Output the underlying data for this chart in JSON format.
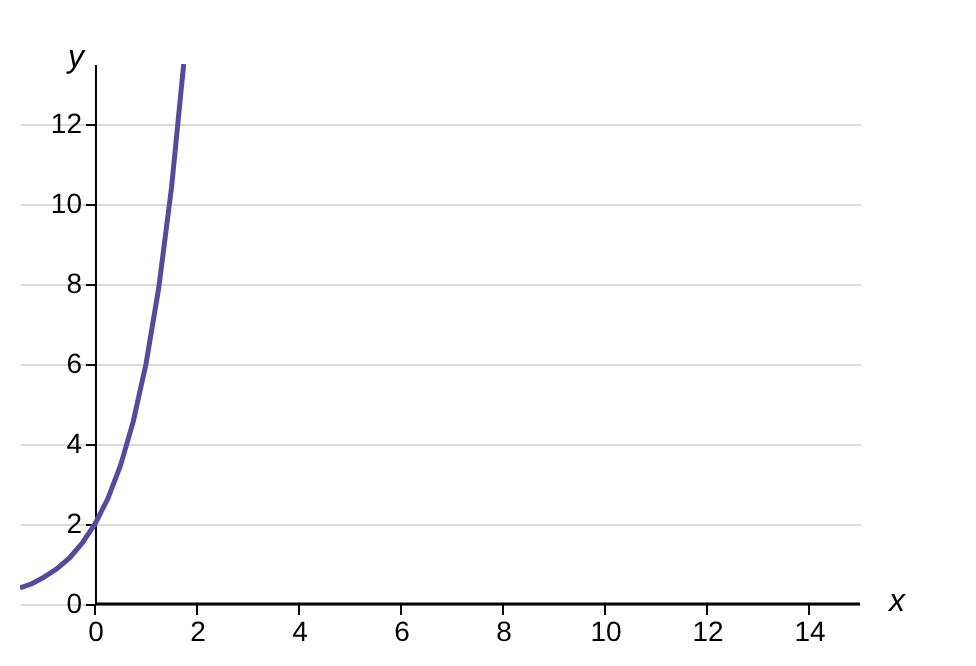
{
  "chart_data": {
    "type": "line",
    "xlabel": "x",
    "ylabel": "y",
    "x": [
      -1.47,
      -1.25,
      -1,
      -0.75,
      -0.5,
      -0.25,
      0,
      0.25,
      0.5,
      0.75,
      1,
      1.25,
      1.5,
      1.74
    ],
    "series": [
      {
        "color": "#574a9e",
        "values": [
          0.4,
          0.5,
          0.67,
          0.88,
          1.15,
          1.52,
          2,
          2.63,
          3.46,
          4.56,
          6,
          7.9,
          10.4,
          13.5
        ]
      }
    ],
    "xlim": [
      -1.47,
      15
    ],
    "ylim": [
      0,
      13.5
    ],
    "xticks": [
      0,
      2,
      4,
      6,
      8,
      10,
      12,
      14
    ],
    "yticks": [
      0,
      2,
      4,
      6,
      8,
      10,
      12
    ],
    "grid": "y",
    "marker": "none",
    "line_style": "solid"
  }
}
